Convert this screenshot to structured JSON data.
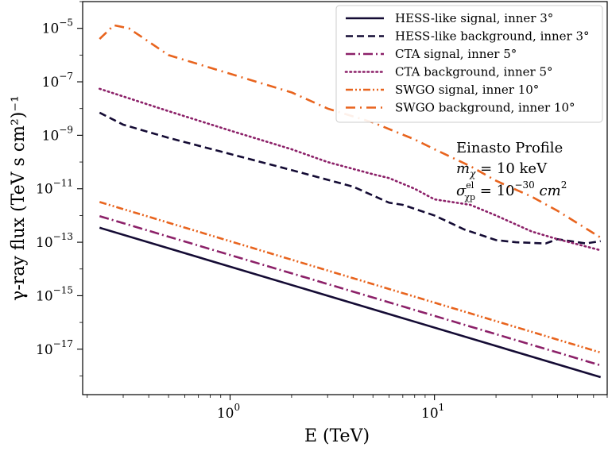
{
  "chart_data": {
    "type": "line",
    "xlabel": "E (TeV)",
    "ylabel": "γ-ray flux (TeV s cm²)⁻¹",
    "x_scale": "log",
    "y_scale": "log",
    "xlim": [
      0.19,
      70
    ],
    "ylim": [
      2e-19,
      0.0001
    ],
    "x_ticks": [
      {
        "value": 1,
        "base": "10",
        "exp": "0"
      },
      {
        "value": 10,
        "base": "10",
        "exp": "1"
      }
    ],
    "y_ticks": [
      {
        "value": 1e-17,
        "base": "10",
        "exp": "−17"
      },
      {
        "value": 1e-15,
        "base": "10",
        "exp": "−15"
      },
      {
        "value": 1e-13,
        "base": "10",
        "exp": "−13"
      },
      {
        "value": 1e-11,
        "base": "10",
        "exp": "−11"
      },
      {
        "value": 1e-09,
        "base": "10",
        "exp": "−9"
      },
      {
        "value": 1e-07,
        "base": "10",
        "exp": "−7"
      },
      {
        "value": 1e-05,
        "base": "10",
        "exp": "−5"
      }
    ],
    "grid": false,
    "legend_position": "top-right",
    "annotation": {
      "line1": "Einasto Profile",
      "line2_main": "m",
      "line2_sub": "χ",
      "line2_rest": " = 10 keV",
      "line3_main": "σ",
      "line3_sup": "el",
      "line3_sub": "χp",
      "line3_eq": " = 10",
      "line3_exp": "−30",
      "line3_unit": " cm",
      "line3_unit_exp": "2"
    },
    "series": [
      {
        "name": "HESS-like signal, inner 3°",
        "color": "#140b34",
        "dash": "solid",
        "points": [
          [
            0.23,
            3.5e-13
          ],
          [
            65,
            9e-19
          ]
        ]
      },
      {
        "name": "HESS-like background, inner 3°",
        "color": "#140b34",
        "dash": "dashed",
        "points": [
          [
            0.23,
            7e-09
          ],
          [
            0.3,
            2.5e-09
          ],
          [
            0.5,
            8e-10
          ],
          [
            1,
            2e-10
          ],
          [
            2,
            5e-11
          ],
          [
            4,
            1.2e-11
          ],
          [
            6,
            3e-12
          ],
          [
            7,
            2.5e-12
          ],
          [
            10,
            1e-12
          ],
          [
            14,
            3e-13
          ],
          [
            20,
            1.2e-13
          ],
          [
            25,
            1e-13
          ],
          [
            35,
            9e-14
          ],
          [
            40,
            1.3e-13
          ],
          [
            55,
            9e-14
          ],
          [
            65,
            1.1e-13
          ]
        ]
      },
      {
        "name": "CTA signal, inner 5°",
        "color": "#8c2169",
        "dash": "dashdot",
        "points": [
          [
            0.23,
            9.5e-13
          ],
          [
            65,
            2.5e-18
          ]
        ]
      },
      {
        "name": "CTA background, inner 5°",
        "color": "#8c2169",
        "dash": "dotted",
        "points": [
          [
            0.23,
            5.5e-08
          ],
          [
            0.5,
            8e-09
          ],
          [
            1,
            1.5e-09
          ],
          [
            2,
            3e-10
          ],
          [
            3,
            1e-10
          ],
          [
            5,
            3.5e-11
          ],
          [
            6,
            2.5e-11
          ],
          [
            8,
            1e-11
          ],
          [
            10,
            4e-12
          ],
          [
            15,
            2.5e-12
          ],
          [
            20,
            1e-12
          ],
          [
            30,
            2.5e-13
          ],
          [
            40,
            1.3e-13
          ],
          [
            65,
            5e-14
          ]
        ]
      },
      {
        "name": "SWGO signal, inner 10°",
        "color": "#e8641e",
        "dash": "dashdotdot",
        "points": [
          [
            0.23,
            3.2e-12
          ],
          [
            65,
            7.5e-18
          ]
        ]
      },
      {
        "name": "SWGO background, inner 10°",
        "color": "#e8641e",
        "dash": "loosedashdot",
        "points": [
          [
            0.23,
            4e-06
          ],
          [
            0.27,
            1.3e-05
          ],
          [
            0.32,
            1e-05
          ],
          [
            0.5,
            1e-06
          ],
          [
            1,
            2e-07
          ],
          [
            2,
            4e-08
          ],
          [
            3,
            1e-08
          ],
          [
            5,
            3e-09
          ],
          [
            8,
            7e-10
          ],
          [
            10,
            3e-10
          ],
          [
            15,
            7e-11
          ],
          [
            20,
            2e-11
          ],
          [
            30,
            5e-12
          ],
          [
            40,
            1.5e-12
          ],
          [
            65,
            1.5e-13
          ]
        ]
      }
    ]
  }
}
